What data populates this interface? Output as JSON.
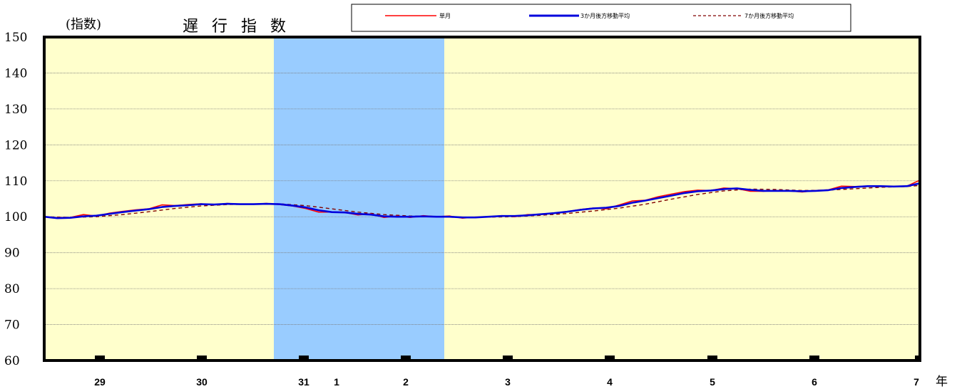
{
  "chart_data": {
    "type": "line",
    "title": "遅 行 指 数",
    "ylabel": "(指数)",
    "xunit": "年",
    "ylim": [
      60,
      150
    ],
    "yticks": [
      60,
      70,
      80,
      90,
      100,
      110,
      120,
      130,
      140,
      150
    ],
    "x_start": "2017-01",
    "x_end": "2025-07",
    "xticks": [
      {
        "label": "29",
        "month": "2017-12"
      },
      {
        "label": "30",
        "month": "2018-12"
      },
      {
        "label": "31",
        "month": "2019-12"
      },
      {
        "label": "1",
        "month": "2020-04"
      },
      {
        "label": "2",
        "month": "2020-12"
      },
      {
        "label": "3",
        "month": "2021-12"
      },
      {
        "label": "4",
        "month": "2022-12"
      },
      {
        "label": "5",
        "month": "2023-12"
      },
      {
        "label": "6",
        "month": "2024-12"
      },
      {
        "label": "7",
        "month": "2025-07"
      }
    ],
    "shaded_period": {
      "start": "2018-10",
      "end": "2020-05",
      "color": "#99ccff"
    },
    "background_color": "#ffffcc",
    "grid": true,
    "legend_position": "top",
    "series": [
      {
        "name": "単月",
        "color": "#ff0000",
        "style": "thin-solid",
        "points": [
          [
            "2017-01",
            100.0
          ],
          [
            "2017-03",
            99.7
          ],
          [
            "2017-05",
            99.8
          ],
          [
            "2017-07",
            100.6
          ],
          [
            "2017-09",
            100.2
          ],
          [
            "2017-11",
            101.0
          ],
          [
            "2018-01",
            101.5
          ],
          [
            "2018-03",
            101.9
          ],
          [
            "2018-05",
            102.2
          ],
          [
            "2018-07",
            103.3
          ],
          [
            "2018-09",
            103.1
          ],
          [
            "2018-11",
            103.4
          ],
          [
            "2019-01",
            103.6
          ],
          [
            "2019-03",
            103.3
          ],
          [
            "2019-05",
            103.7
          ],
          [
            "2019-07",
            103.5
          ],
          [
            "2019-09",
            103.5
          ],
          [
            "2019-11",
            103.7
          ],
          [
            "2020-01",
            103.4
          ],
          [
            "2020-03",
            103.0
          ],
          [
            "2020-05",
            102.3
          ],
          [
            "2020-07",
            101.3
          ],
          [
            "2020-09",
            101.3
          ],
          [
            "2020-11",
            101.2
          ],
          [
            "2021-01",
            100.5
          ],
          [
            "2021-03",
            100.8
          ],
          [
            "2021-05",
            99.8
          ],
          [
            "2021-07",
            100.2
          ],
          [
            "2021-09",
            99.8
          ],
          [
            "2021-11",
            100.3
          ],
          [
            "2022-01",
            100.0
          ],
          [
            "2022-03",
            100.2
          ],
          [
            "2022-05",
            99.6
          ],
          [
            "2022-07",
            99.9
          ],
          [
            "2022-09",
            99.9
          ],
          [
            "2022-11",
            100.3
          ],
          [
            "2023-01",
            100.0
          ],
          [
            "2023-03",
            100.6
          ],
          [
            "2023-05",
            100.6
          ],
          [
            "2023-07",
            101.0
          ],
          [
            "2023-09",
            101.4
          ],
          [
            "2023-11",
            102.0
          ],
          [
            "2024-01",
            102.4
          ],
          [
            "2024-03",
            102.2
          ],
          [
            "2024-05",
            103.3
          ],
          [
            "2024-07",
            104.4
          ],
          [
            "2024-09",
            104.6
          ],
          [
            "2024-11",
            105.6
          ],
          [
            "2025-01",
            106.3
          ],
          [
            "2025-03",
            107.0
          ],
          [
            "2025-05",
            107.4
          ],
          [
            "2025-07",
            107.3
          ],
          [
            "2025-09",
            108.0
          ],
          [
            "2025-11",
            107.8
          ],
          [
            "2026-01",
            107.1
          ],
          [
            "2026-03",
            107.1
          ],
          [
            "2026-05",
            107.3
          ],
          [
            "2026-07",
            107.2
          ],
          [
            "2026-09",
            106.9
          ],
          [
            "2026-11",
            107.3
          ],
          [
            "2027-01",
            107.5
          ],
          [
            "2027-03",
            108.5
          ],
          [
            "2027-05",
            108.4
          ],
          [
            "2027-07",
            108.5
          ],
          [
            "2027-09",
            108.4
          ],
          [
            "2027-11",
            108.4
          ],
          [
            "2028-01",
            108.5
          ],
          [
            "2028-03",
            110.2
          ]
        ]
      },
      {
        "name": "3か月後方移動平均",
        "color": "#0000dd",
        "style": "thick-solid",
        "points": [
          [
            "2017-01",
            100.0
          ],
          [
            "2017-03",
            99.6
          ],
          [
            "2017-05",
            99.7
          ],
          [
            "2017-07",
            100.1
          ],
          [
            "2017-09",
            100.3
          ],
          [
            "2017-11",
            100.8
          ],
          [
            "2018-01",
            101.3
          ],
          [
            "2018-03",
            101.7
          ],
          [
            "2018-05",
            102.1
          ],
          [
            "2018-07",
            102.7
          ],
          [
            "2018-09",
            103.0
          ],
          [
            "2018-11",
            103.2
          ],
          [
            "2019-01",
            103.5
          ],
          [
            "2019-03",
            103.4
          ],
          [
            "2019-05",
            103.6
          ],
          [
            "2019-07",
            103.5
          ],
          [
            "2019-09",
            103.5
          ],
          [
            "2019-11",
            103.6
          ],
          [
            "2020-01",
            103.5
          ],
          [
            "2020-03",
            103.1
          ],
          [
            "2020-05",
            102.6
          ],
          [
            "2020-07",
            101.8
          ],
          [
            "2020-09",
            101.3
          ],
          [
            "2020-11",
            101.2
          ],
          [
            "2021-01",
            100.8
          ],
          [
            "2021-03",
            100.6
          ],
          [
            "2021-05",
            100.1
          ],
          [
            "2021-07",
            100.0
          ],
          [
            "2021-09",
            100.0
          ],
          [
            "2021-11",
            100.1
          ],
          [
            "2022-01",
            100.0
          ],
          [
            "2022-03",
            100.0
          ],
          [
            "2022-05",
            99.8
          ],
          [
            "2022-07",
            99.8
          ],
          [
            "2022-09",
            100.0
          ],
          [
            "2022-11",
            100.2
          ],
          [
            "2023-01",
            100.2
          ],
          [
            "2023-03",
            100.4
          ],
          [
            "2023-05",
            100.7
          ],
          [
            "2023-07",
            101.0
          ],
          [
            "2023-09",
            101.4
          ],
          [
            "2023-11",
            101.9
          ],
          [
            "2024-01",
            102.3
          ],
          [
            "2024-03",
            102.5
          ],
          [
            "2024-05",
            103.0
          ],
          [
            "2024-07",
            103.9
          ],
          [
            "2024-09",
            104.5
          ],
          [
            "2024-11",
            105.2
          ],
          [
            "2025-01",
            105.9
          ],
          [
            "2025-03",
            106.6
          ],
          [
            "2025-05",
            107.1
          ],
          [
            "2025-07",
            107.3
          ],
          [
            "2025-09",
            107.7
          ],
          [
            "2025-11",
            107.9
          ],
          [
            "2026-01",
            107.5
          ],
          [
            "2026-03",
            107.2
          ],
          [
            "2026-05",
            107.2
          ],
          [
            "2026-07",
            107.2
          ],
          [
            "2026-09",
            107.1
          ],
          [
            "2026-11",
            107.2
          ],
          [
            "2027-01",
            107.4
          ],
          [
            "2027-03",
            108.0
          ],
          [
            "2027-05",
            108.3
          ],
          [
            "2027-07",
            108.5
          ],
          [
            "2027-09",
            108.5
          ],
          [
            "2027-11",
            108.4
          ],
          [
            "2028-01",
            108.5
          ],
          [
            "2028-03",
            109.3
          ]
        ]
      },
      {
        "name": "7か月後方移動平均",
        "color": "#800000",
        "style": "dashed",
        "points": [
          [
            "2017-01",
            100.0
          ],
          [
            "2017-05",
            99.8
          ],
          [
            "2017-09",
            100.0
          ],
          [
            "2018-01",
            100.6
          ],
          [
            "2018-05",
            101.4
          ],
          [
            "2018-09",
            102.3
          ],
          [
            "2019-01",
            103.0
          ],
          [
            "2019-05",
            103.4
          ],
          [
            "2019-09",
            103.5
          ],
          [
            "2020-01",
            103.6
          ],
          [
            "2020-05",
            103.1
          ],
          [
            "2020-09",
            102.2
          ],
          [
            "2021-01",
            101.3
          ],
          [
            "2021-05",
            100.6
          ],
          [
            "2021-09",
            100.2
          ],
          [
            "2022-01",
            100.1
          ],
          [
            "2022-05",
            99.9
          ],
          [
            "2022-09",
            99.9
          ],
          [
            "2023-01",
            100.0
          ],
          [
            "2023-05",
            100.4
          ],
          [
            "2023-09",
            100.9
          ],
          [
            "2024-01",
            101.6
          ],
          [
            "2024-05",
            102.4
          ],
          [
            "2024-09",
            103.5
          ],
          [
            "2025-01",
            104.9
          ],
          [
            "2025-05",
            106.2
          ],
          [
            "2025-09",
            107.2
          ],
          [
            "2026-01",
            107.7
          ],
          [
            "2026-05",
            107.6
          ],
          [
            "2026-09",
            107.3
          ],
          [
            "2027-01",
            107.4
          ],
          [
            "2027-05",
            107.8
          ],
          [
            "2027-09",
            108.2
          ],
          [
            "2028-01",
            108.4
          ],
          [
            "2028-03",
            108.7
          ]
        ]
      }
    ]
  }
}
